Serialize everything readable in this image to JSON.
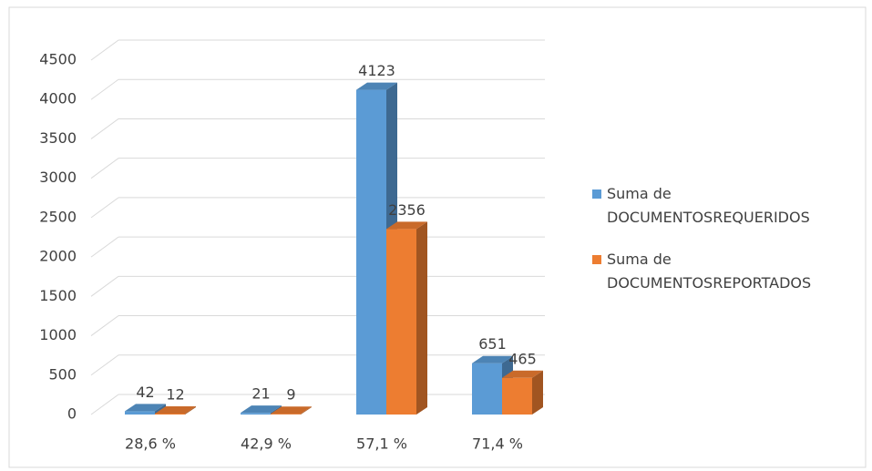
{
  "chart_data": {
    "type": "bar3d",
    "categories": [
      "28,6 %",
      "42,9 %",
      "57,1 %",
      "71,4 %"
    ],
    "series": [
      {
        "name": "Suma de DOCUMENTOSREQUERIDOS",
        "color": "#5b9bd5",
        "values": [
          42,
          21,
          4123,
          651
        ]
      },
      {
        "name": "Suma de DOCUMENTOSREPORTADOS",
        "color": "#ed7d31",
        "values": [
          12,
          9,
          2356,
          465
        ]
      }
    ],
    "ylim": [
      0,
      4500
    ],
    "yticks": [
      0,
      500,
      1000,
      1500,
      2000,
      2500,
      3000,
      3500,
      4000,
      4500
    ],
    "grid": true,
    "legend": "right"
  }
}
